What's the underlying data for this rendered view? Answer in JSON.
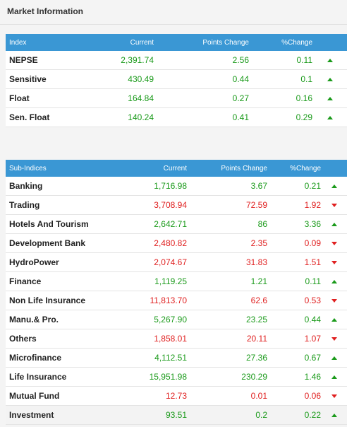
{
  "panel": {
    "title": "Market Information"
  },
  "colors": {
    "header_bg": "#3a97d4",
    "up": "#1a9a1a",
    "down": "#e02020"
  },
  "index_table": {
    "headers": {
      "name": "Index",
      "current": "Current",
      "points_change": "Points Change",
      "pct_change": "%Change"
    },
    "rows": [
      {
        "name": "NEPSE",
        "current": "2,391.74",
        "points_change": "2.56",
        "pct_change": "0.11",
        "direction": "up"
      },
      {
        "name": "Sensitive",
        "current": "430.49",
        "points_change": "0.44",
        "pct_change": "0.1",
        "direction": "up"
      },
      {
        "name": "Float",
        "current": "164.84",
        "points_change": "0.27",
        "pct_change": "0.16",
        "direction": "up"
      },
      {
        "name": "Sen. Float",
        "current": "140.24",
        "points_change": "0.41",
        "pct_change": "0.29",
        "direction": "up"
      }
    ]
  },
  "sub_indices_table": {
    "headers": {
      "name": "Sub-Indices",
      "current": "Current",
      "points_change": "Points Change",
      "pct_change": "%Change"
    },
    "rows": [
      {
        "name": "Banking",
        "current": "1,716.98",
        "points_change": "3.67",
        "pct_change": "0.21",
        "direction": "up"
      },
      {
        "name": "Trading",
        "current": "3,708.94",
        "points_change": "72.59",
        "pct_change": "1.92",
        "direction": "down"
      },
      {
        "name": "Hotels And Tourism",
        "current": "2,642.71",
        "points_change": "86",
        "pct_change": "3.36",
        "direction": "up"
      },
      {
        "name": "Development Bank",
        "current": "2,480.82",
        "points_change": "2.35",
        "pct_change": "0.09",
        "direction": "down"
      },
      {
        "name": "HydroPower",
        "current": "2,074.67",
        "points_change": "31.83",
        "pct_change": "1.51",
        "direction": "down"
      },
      {
        "name": "Finance",
        "current": "1,119.25",
        "points_change": "1.21",
        "pct_change": "0.11",
        "direction": "up"
      },
      {
        "name": "Non Life Insurance",
        "current": "11,813.70",
        "points_change": "62.6",
        "pct_change": "0.53",
        "direction": "down"
      },
      {
        "name": "Manu.& Pro.",
        "current": "5,267.90",
        "points_change": "23.25",
        "pct_change": "0.44",
        "direction": "up"
      },
      {
        "name": "Others",
        "current": "1,858.01",
        "points_change": "20.11",
        "pct_change": "1.07",
        "direction": "down"
      },
      {
        "name": "Microfinance",
        "current": "4,112.51",
        "points_change": "27.36",
        "pct_change": "0.67",
        "direction": "up"
      },
      {
        "name": "Life Insurance",
        "current": "15,951.98",
        "points_change": "230.29",
        "pct_change": "1.46",
        "direction": "up"
      },
      {
        "name": "Mutual Fund",
        "current": "12.73",
        "points_change": "0.01",
        "pct_change": "0.06",
        "direction": "down"
      },
      {
        "name": "Investment",
        "current": "93.51",
        "points_change": "0.2",
        "pct_change": "0.22",
        "direction": "up"
      }
    ]
  }
}
